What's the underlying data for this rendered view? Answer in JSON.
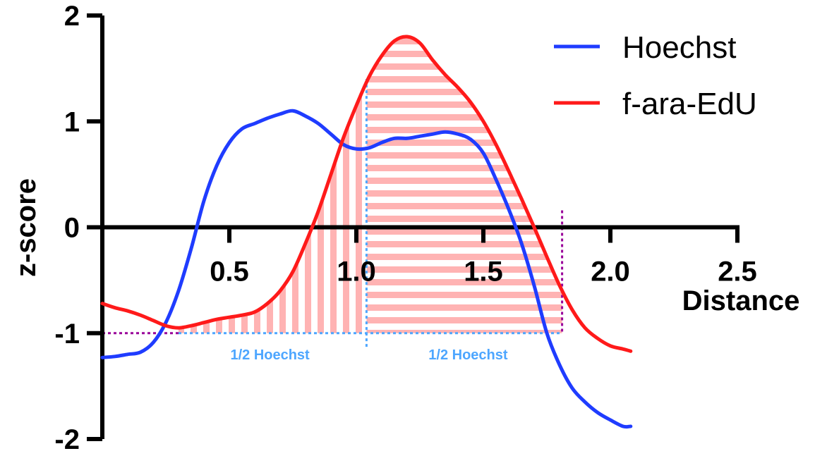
{
  "chart_data": {
    "type": "line",
    "title": "",
    "xlabel": "Distance",
    "ylabel": "z-score",
    "xlim": [
      0,
      2.5
    ],
    "ylim": [
      -2,
      2
    ],
    "x_ticks": [
      {
        "value": 0.5,
        "label": "0.5"
      },
      {
        "value": 1.0,
        "label": "1.0"
      },
      {
        "value": 1.5,
        "label": "1.5"
      },
      {
        "value": 2.0,
        "label": "2.0"
      },
      {
        "value": 2.5,
        "label": "2.5"
      }
    ],
    "y_ticks": [
      {
        "value": 2,
        "label": "2"
      },
      {
        "value": 1,
        "label": "1"
      },
      {
        "value": 0,
        "label": "0"
      },
      {
        "value": -1,
        "label": "-1"
      },
      {
        "value": -2,
        "label": "-2"
      }
    ],
    "legend_position": "top-right",
    "series": [
      {
        "name": "Hoechst",
        "color": "#1f3cff",
        "x": [
          0,
          0.05,
          0.1,
          0.15,
          0.2,
          0.25,
          0.3,
          0.35,
          0.4,
          0.45,
          0.5,
          0.55,
          0.6,
          0.65,
          0.7,
          0.75,
          0.8,
          0.85,
          0.9,
          0.95,
          1.0,
          1.05,
          1.1,
          1.15,
          1.2,
          1.25,
          1.3,
          1.35,
          1.4,
          1.45,
          1.5,
          1.55,
          1.6,
          1.65,
          1.7,
          1.75,
          1.8,
          1.85,
          1.9,
          1.95,
          2.0,
          2.05,
          2.08
        ],
        "y": [
          -1.23,
          -1.22,
          -1.2,
          -1.18,
          -1.09,
          -0.9,
          -0.6,
          -0.2,
          0.25,
          0.58,
          0.8,
          0.93,
          0.98,
          1.03,
          1.07,
          1.1,
          1.05,
          0.98,
          0.88,
          0.78,
          0.74,
          0.75,
          0.8,
          0.84,
          0.84,
          0.86,
          0.88,
          0.9,
          0.88,
          0.83,
          0.7,
          0.45,
          0.17,
          -0.15,
          -0.55,
          -1.0,
          -1.3,
          -1.52,
          -1.65,
          -1.75,
          -1.82,
          -1.88,
          -1.88
        ]
      },
      {
        "name": "f-ara-EdU",
        "color": "#ff1a1a",
        "x": [
          0,
          0.05,
          0.1,
          0.15,
          0.2,
          0.25,
          0.3,
          0.35,
          0.4,
          0.45,
          0.5,
          0.55,
          0.6,
          0.65,
          0.7,
          0.75,
          0.8,
          0.85,
          0.9,
          0.95,
          1.0,
          1.05,
          1.1,
          1.15,
          1.2,
          1.25,
          1.3,
          1.35,
          1.4,
          1.45,
          1.5,
          1.55,
          1.6,
          1.65,
          1.7,
          1.75,
          1.8,
          1.85,
          1.9,
          1.95,
          2.0,
          2.05,
          2.08
        ],
        "y": [
          -0.72,
          -0.76,
          -0.79,
          -0.83,
          -0.88,
          -0.93,
          -0.95,
          -0.93,
          -0.9,
          -0.87,
          -0.85,
          -0.83,
          -0.8,
          -0.72,
          -0.6,
          -0.42,
          -0.15,
          0.15,
          0.5,
          0.85,
          1.15,
          1.42,
          1.62,
          1.76,
          1.8,
          1.74,
          1.58,
          1.44,
          1.32,
          1.18,
          1.0,
          0.78,
          0.53,
          0.27,
          0.0,
          -0.28,
          -0.55,
          -0.78,
          -0.95,
          -1.05,
          -1.12,
          -1.15,
          -1.17
        ]
      }
    ],
    "annotations": [
      {
        "text": "1/2 Hoechst",
        "color": "#4da6ff",
        "x_center": 0.66,
        "y": -1.18
      },
      {
        "text": "1/2 Hoechst",
        "color": "#4da6ff",
        "x_center": 1.44,
        "y": -1.18
      }
    ],
    "reference_lines": {
      "baseline_y": -1.0,
      "baseline_color": "#990099",
      "blue_markers": [
        {
          "x": 1.04,
          "y_top": 1.4
        }
      ],
      "purple_markers": [
        {
          "x": 1.81,
          "y_top": 0.16
        }
      ],
      "blue_segment": [
        0.3,
        1.81
      ],
      "purple_segment": [
        0,
        0.3
      ]
    },
    "shaded_regions": [
      {
        "from": 0.3,
        "to": 1.04,
        "pattern": "vertical-stripes",
        "color": "#ffb3b3",
        "series": "f-ara-EdU"
      },
      {
        "from": 1.04,
        "to": 1.81,
        "pattern": "horizontal-stripes",
        "color": "#ffb3b3",
        "series": "f-ara-EdU"
      }
    ]
  }
}
